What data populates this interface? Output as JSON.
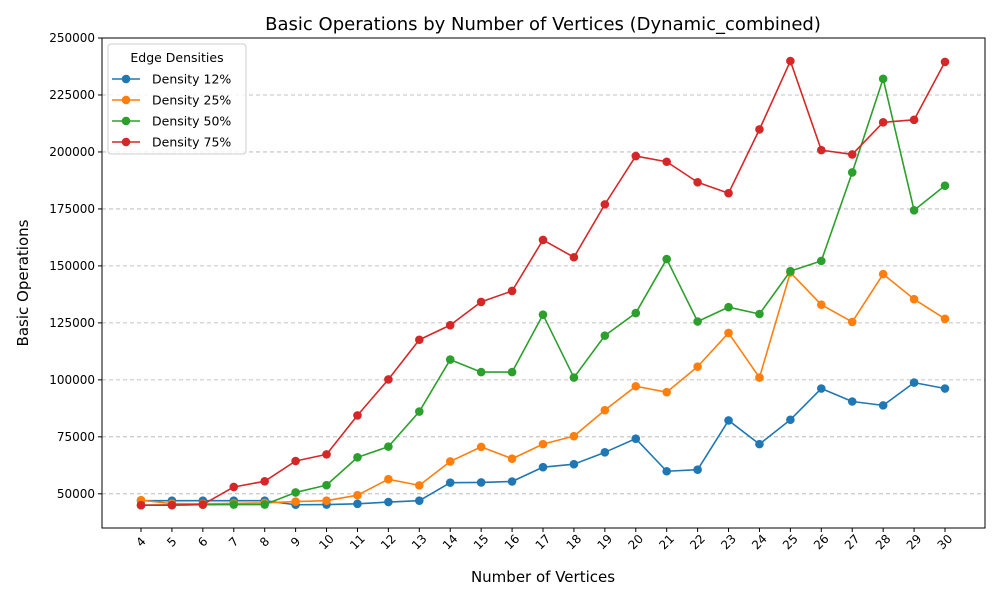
{
  "chart_data": {
    "type": "line",
    "title": "Basic Operations by Number of Vertices (Dynamic_combined)",
    "xlabel": "Number of Vertices",
    "ylabel": "Basic Operations",
    "x": [
      4,
      5,
      6,
      7,
      8,
      9,
      10,
      11,
      12,
      13,
      14,
      15,
      16,
      17,
      18,
      19,
      20,
      21,
      22,
      23,
      24,
      25,
      26,
      27,
      28,
      29,
      30
    ],
    "ylim": [
      35000,
      250000
    ],
    "yticks": [
      50000,
      75000,
      100000,
      125000,
      150000,
      175000,
      200000,
      225000,
      250000
    ],
    "grid": "y-dashed",
    "legend": {
      "title": "Edge Densities",
      "placement": "top-left"
    },
    "series": [
      {
        "name": "Density 12%",
        "color": "#1f77b4",
        "values": [
          47000,
          47000,
          47000,
          47000,
          47000,
          45200,
          45300,
          45600,
          46400,
          47000,
          54900,
          55000,
          55400,
          61700,
          63000,
          68200,
          74200,
          59900,
          60600,
          82200,
          71800,
          82500,
          96200,
          90500,
          88800,
          98800,
          96200
        ]
      },
      {
        "name": "Density 25%",
        "color": "#ff7f0e",
        "values": [
          47200,
          45700,
          45600,
          45800,
          46000,
          46600,
          47000,
          49400,
          56400,
          53700,
          64200,
          70600,
          65400,
          71800,
          75300,
          86700,
          97200,
          94600,
          105800,
          120600,
          101000,
          147100,
          133000,
          125400,
          146400,
          135400,
          126800
        ]
      },
      {
        "name": "Density 50%",
        "color": "#2ca02c",
        "values": [
          45000,
          45100,
          45200,
          45300,
          45300,
          50600,
          53800,
          66000,
          70700,
          86100,
          108900,
          103400,
          103400,
          128600,
          101000,
          119400,
          129300,
          153000,
          125600,
          131900,
          128900,
          147700,
          152200,
          191000,
          232100,
          174400,
          185200
        ]
      },
      {
        "name": "Density 75%",
        "color": "#d62728",
        "values": [
          45000,
          45000,
          45300,
          53000,
          55500,
          64400,
          67300,
          84400,
          100200,
          117600,
          124000,
          134200,
          139000,
          161400,
          153800,
          177000,
          198200,
          195700,
          186700,
          181900,
          209900,
          239900,
          200800,
          198900,
          213000,
          214100,
          239500
        ]
      }
    ]
  }
}
